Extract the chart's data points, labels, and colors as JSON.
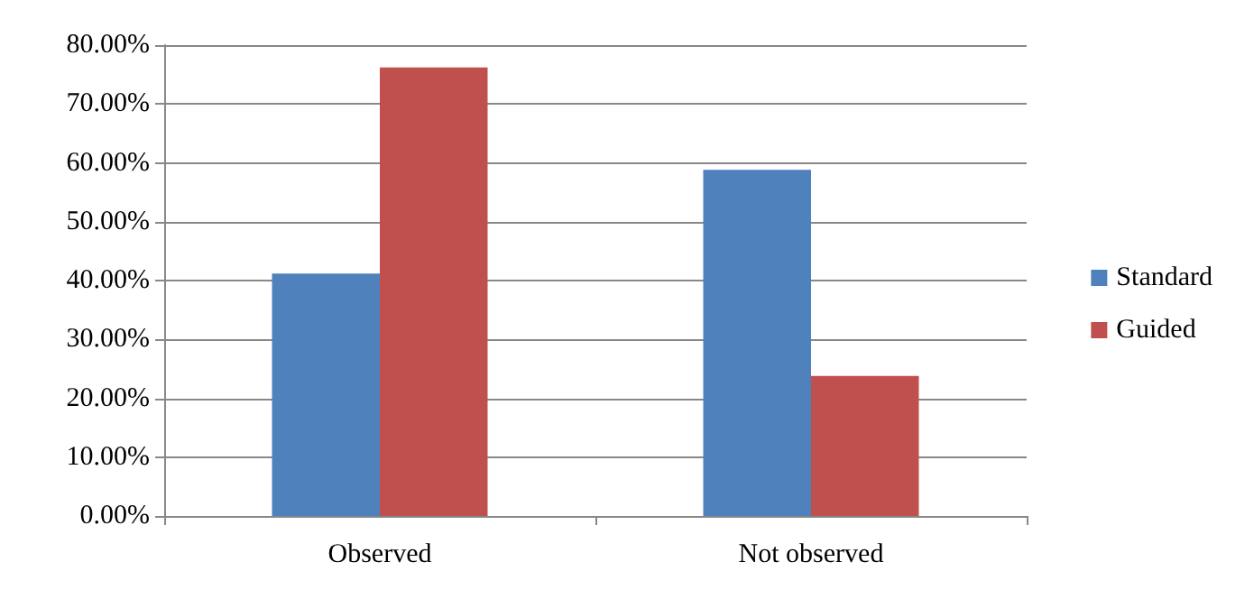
{
  "chart_data": {
    "type": "bar",
    "categories": [
      "Observed",
      "Not observed"
    ],
    "series": [
      {
        "name": "Standard",
        "color": "#4f81bd",
        "values": [
          41.2,
          58.8
        ]
      },
      {
        "name": "Guided",
        "color": "#c0504d",
        "values": [
          76.2,
          23.8
        ]
      }
    ],
    "ylim": [
      0,
      80
    ],
    "yticks": [
      {
        "value": 0,
        "label": "0.00%"
      },
      {
        "value": 10,
        "label": "10.00%"
      },
      {
        "value": 20,
        "label": "20.00%"
      },
      {
        "value": 30,
        "label": "30.00%"
      },
      {
        "value": 40,
        "label": "40.00%"
      },
      {
        "value": 50,
        "label": "50.00%"
      },
      {
        "value": 60,
        "label": "60.00%"
      },
      {
        "value": 70,
        "label": "70.00%"
      },
      {
        "value": 80,
        "label": "80.00%"
      }
    ],
    "grid": "y",
    "legend": "right"
  }
}
